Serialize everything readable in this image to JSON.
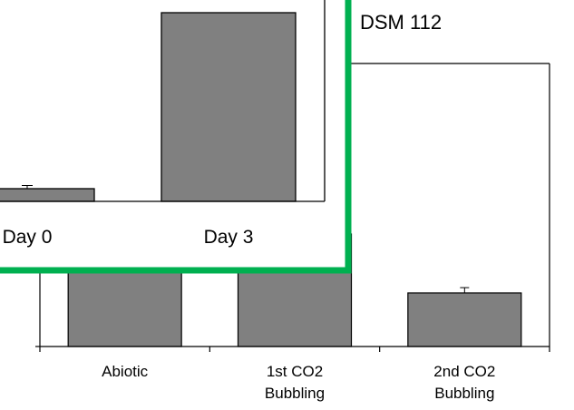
{
  "colors": {
    "bar_fill": "#808080",
    "bar_stroke": "#000000",
    "inset_border": "#00b050",
    "background": "#ffffff"
  },
  "chart_data": [
    {
      "type": "bar",
      "title": "DSM 112",
      "categories": [
        "Abiotic",
        "1st CO2 Bubbling",
        "2nd CO2 Bubbling"
      ],
      "category_lines": [
        [
          "Abiotic"
        ],
        [
          "1st CO2",
          "Bubbling"
        ],
        [
          "2nd CO2",
          "Bubbling"
        ]
      ],
      "values": [
        0.42,
        0.42,
        0.2
      ],
      "errors": [
        null,
        null,
        0.06
      ],
      "ylim": [
        0,
        1
      ],
      "xlabel": "",
      "ylabel": "",
      "grid": false
    },
    {
      "type": "bar",
      "title": "",
      "categories": [
        "Day 0",
        "Day 3"
      ],
      "values": [
        0.07,
        1.04
      ],
      "errors": [
        0.07,
        null
      ],
      "ylim": [
        0,
        1
      ],
      "xlabel": "",
      "ylabel": "",
      "grid": false,
      "inset": true
    }
  ]
}
